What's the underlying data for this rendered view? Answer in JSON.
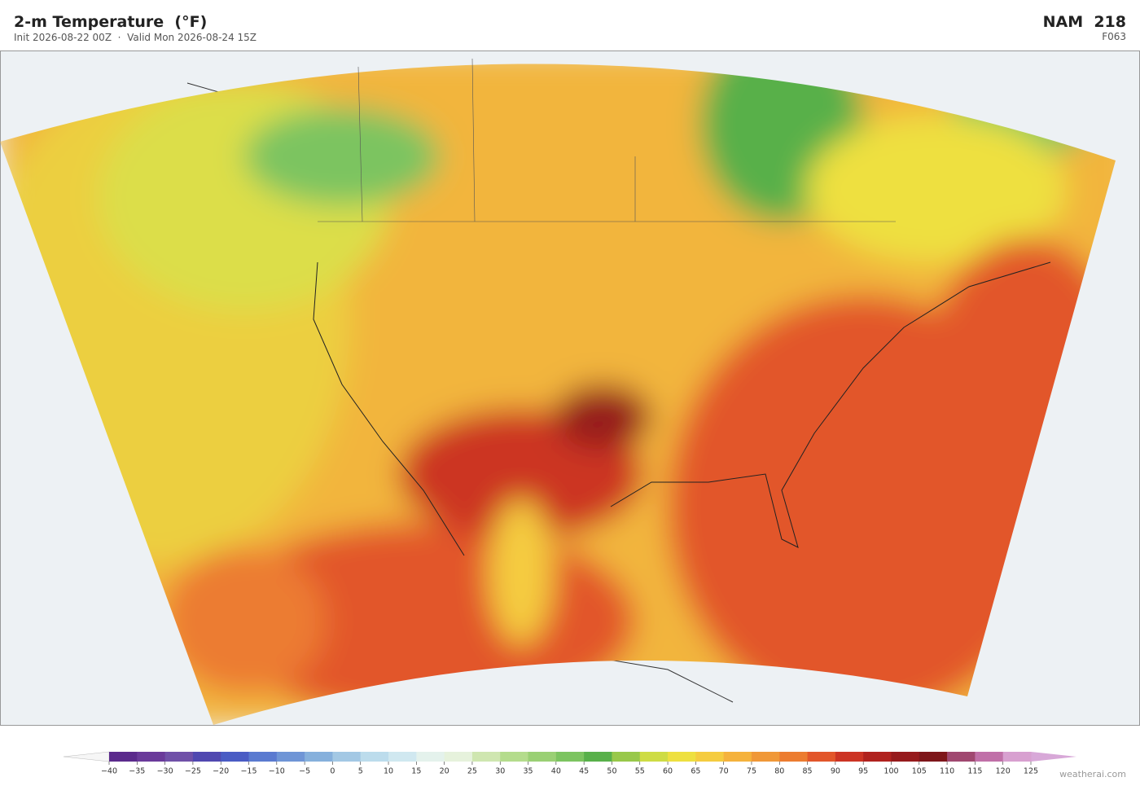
{
  "header": {
    "title": "2-m Temperature  (°F)",
    "subtitle": "Init 2026-08-22 00Z  ·  Valid Mon 2026-08-24 15Z",
    "model": "NAM  218",
    "forecast_hour": "F063"
  },
  "colorbar": {
    "colors": [
      "#5b2a8c",
      "#6a3a9a",
      "#7050a8",
      "#5048b0",
      "#4a5cc4",
      "#5a7ad0",
      "#6f95d6",
      "#86b0dc",
      "#a3c8e4",
      "#bcdcec",
      "#d0e8f0",
      "#e4f2ec",
      "#e6f2dc",
      "#cfe6b0",
      "#b4dc8c",
      "#9ad074",
      "#7cc460",
      "#58b04a",
      "#98c84a",
      "#cedc44",
      "#eee040",
      "#f5cc40",
      "#f5b23c",
      "#f09838",
      "#ec7c30",
      "#e2562a",
      "#cc3424",
      "#b0221e",
      "#961a1c",
      "#7e161a",
      "#a04870",
      "#c070a8",
      "#d8a0d0"
    ],
    "ticks": [
      {
        "value": -40,
        "label": "−40"
      },
      {
        "value": -35,
        "label": "−35"
      },
      {
        "value": -30,
        "label": "−30"
      },
      {
        "value": -25,
        "label": "−25"
      },
      {
        "value": -20,
        "label": "−20"
      },
      {
        "value": -15,
        "label": "−15"
      },
      {
        "value": -10,
        "label": "−10"
      },
      {
        "value": -5,
        "label": "−5"
      },
      0,
      5,
      10,
      15,
      20,
      25,
      30,
      35,
      40,
      45,
      50,
      55,
      60,
      65,
      70,
      75,
      80,
      85,
      90,
      95,
      100,
      105,
      110,
      115,
      120,
      125
    ]
  },
  "footer": {
    "credit": "weatherai.com"
  }
}
